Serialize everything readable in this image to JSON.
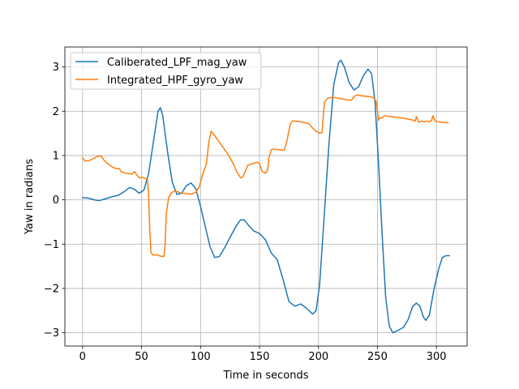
{
  "chart_data": {
    "type": "line",
    "title": "",
    "xlabel": "Time in seconds",
    "ylabel": "Yaw in radians",
    "xlim": [
      -15,
      326
    ],
    "ylim": [
      -3.3,
      3.45
    ],
    "xticks": [
      0,
      50,
      100,
      150,
      200,
      250,
      300
    ],
    "yticks": [
      -3,
      -2,
      -1,
      0,
      1,
      2,
      3
    ],
    "ytick_labels": [
      "−3",
      "−2",
      "−1",
      "0",
      "1",
      "2",
      "3"
    ],
    "grid": true,
    "legend_position": "top-left",
    "series": [
      {
        "name": "Caliberated_LPF_mag_yaw",
        "color": "#1f77b4",
        "points": [
          [
            0,
            0.05
          ],
          [
            5,
            0.04
          ],
          [
            10,
            0.0
          ],
          [
            14,
            -0.02
          ],
          [
            20,
            0.03
          ],
          [
            25,
            0.07
          ],
          [
            30,
            0.1
          ],
          [
            35,
            0.18
          ],
          [
            40,
            0.28
          ],
          [
            44,
            0.24
          ],
          [
            48,
            0.15
          ],
          [
            52,
            0.22
          ],
          [
            56,
            0.6
          ],
          [
            60,
            1.3
          ],
          [
            64,
            2.0
          ],
          [
            66,
            2.08
          ],
          [
            68,
            1.9
          ],
          [
            72,
            1.1
          ],
          [
            76,
            0.4
          ],
          [
            80,
            0.12
          ],
          [
            84,
            0.15
          ],
          [
            88,
            0.32
          ],
          [
            92,
            0.38
          ],
          [
            96,
            0.25
          ],
          [
            100,
            -0.15
          ],
          [
            104,
            -0.6
          ],
          [
            108,
            -1.05
          ],
          [
            112,
            -1.3
          ],
          [
            116,
            -1.28
          ],
          [
            120,
            -1.1
          ],
          [
            125,
            -0.85
          ],
          [
            130,
            -0.6
          ],
          [
            134,
            -0.45
          ],
          [
            137,
            -0.45
          ],
          [
            140,
            -0.55
          ],
          [
            145,
            -0.7
          ],
          [
            150,
            -0.76
          ],
          [
            155,
            -0.9
          ],
          [
            160,
            -1.2
          ],
          [
            165,
            -1.35
          ],
          [
            170,
            -1.8
          ],
          [
            175,
            -2.3
          ],
          [
            180,
            -2.4
          ],
          [
            185,
            -2.35
          ],
          [
            190,
            -2.45
          ],
          [
            195,
            -2.58
          ],
          [
            198,
            -2.5
          ],
          [
            201,
            -1.9
          ],
          [
            205,
            -0.3
          ],
          [
            209,
            1.3
          ],
          [
            213,
            2.6
          ],
          [
            217,
            3.1
          ],
          [
            219,
            3.15
          ],
          [
            222,
            3.0
          ],
          [
            226,
            2.65
          ],
          [
            230,
            2.48
          ],
          [
            234,
            2.55
          ],
          [
            238,
            2.8
          ],
          [
            242,
            2.95
          ],
          [
            245,
            2.85
          ],
          [
            248,
            2.2
          ],
          [
            251,
            0.8
          ],
          [
            254,
            -0.8
          ],
          [
            257,
            -2.2
          ],
          [
            260,
            -2.85
          ],
          [
            263,
            -3.0
          ],
          [
            267,
            -2.95
          ],
          [
            272,
            -2.88
          ],
          [
            276,
            -2.7
          ],
          [
            280,
            -2.4
          ],
          [
            283,
            -2.33
          ],
          [
            286,
            -2.4
          ],
          [
            289,
            -2.65
          ],
          [
            291,
            -2.72
          ],
          [
            294,
            -2.6
          ],
          [
            298,
            -2.0
          ],
          [
            302,
            -1.55
          ],
          [
            305,
            -1.3
          ],
          [
            308,
            -1.26
          ],
          [
            311,
            -1.26
          ]
        ]
      },
      {
        "name": "Integrated_HPF_gyro_yaw",
        "color": "#ff7f0e",
        "points": [
          [
            0,
            0.95
          ],
          [
            2,
            0.88
          ],
          [
            5,
            0.88
          ],
          [
            9,
            0.93
          ],
          [
            13,
            0.99
          ],
          [
            16,
            0.98
          ],
          [
            18,
            0.9
          ],
          [
            22,
            0.8
          ],
          [
            26,
            0.73
          ],
          [
            29,
            0.7
          ],
          [
            31,
            0.71
          ],
          [
            33,
            0.63
          ],
          [
            37,
            0.6
          ],
          [
            42,
            0.58
          ],
          [
            44,
            0.64
          ],
          [
            46,
            0.56
          ],
          [
            48,
            0.5
          ],
          [
            52,
            0.5
          ],
          [
            55,
            0.45
          ],
          [
            56,
            0.1
          ],
          [
            57,
            -0.7
          ],
          [
            58,
            -1.2
          ],
          [
            60,
            -1.25
          ],
          [
            63,
            -1.24
          ],
          [
            66,
            -1.27
          ],
          [
            69,
            -1.28
          ],
          [
            70,
            -1.0
          ],
          [
            71,
            -0.3
          ],
          [
            73,
            0.05
          ],
          [
            75,
            0.15
          ],
          [
            78,
            0.2
          ],
          [
            81,
            0.18
          ],
          [
            84,
            0.15
          ],
          [
            88,
            0.14
          ],
          [
            92,
            0.13
          ],
          [
            96,
            0.17
          ],
          [
            99,
            0.3
          ],
          [
            102,
            0.6
          ],
          [
            105,
            0.8
          ],
          [
            107,
            1.3
          ],
          [
            109,
            1.55
          ],
          [
            112,
            1.45
          ],
          [
            116,
            1.3
          ],
          [
            120,
            1.15
          ],
          [
            124,
            1.0
          ],
          [
            128,
            0.8
          ],
          [
            131,
            0.62
          ],
          [
            134,
            0.5
          ],
          [
            136,
            0.52
          ],
          [
            138,
            0.65
          ],
          [
            140,
            0.78
          ],
          [
            144,
            0.82
          ],
          [
            148,
            0.85
          ],
          [
            150,
            0.82
          ],
          [
            152,
            0.65
          ],
          [
            155,
            0.6
          ],
          [
            157,
            0.68
          ],
          [
            158,
            0.95
          ],
          [
            160,
            1.13
          ],
          [
            162,
            1.15
          ],
          [
            166,
            1.13
          ],
          [
            171,
            1.12
          ],
          [
            173,
            1.3
          ],
          [
            176,
            1.7
          ],
          [
            178,
            1.78
          ],
          [
            182,
            1.77
          ],
          [
            187,
            1.75
          ],
          [
            192,
            1.72
          ],
          [
            195,
            1.62
          ],
          [
            198,
            1.55
          ],
          [
            201,
            1.5
          ],
          [
            203,
            1.52
          ],
          [
            205,
            2.2
          ],
          [
            208,
            2.3
          ],
          [
            212,
            2.31
          ],
          [
            216,
            2.3
          ],
          [
            220,
            2.28
          ],
          [
            224,
            2.26
          ],
          [
            228,
            2.25
          ],
          [
            230,
            2.33
          ],
          [
            233,
            2.37
          ],
          [
            236,
            2.35
          ],
          [
            240,
            2.34
          ],
          [
            244,
            2.33
          ],
          [
            247,
            2.3
          ],
          [
            249,
            2.22
          ],
          [
            250,
            2.0
          ],
          [
            251,
            1.8
          ],
          [
            252,
            1.85
          ],
          [
            254,
            1.85
          ],
          [
            256,
            1.9
          ],
          [
            260,
            1.88
          ],
          [
            265,
            1.87
          ],
          [
            270,
            1.85
          ],
          [
            275,
            1.83
          ],
          [
            280,
            1.8
          ],
          [
            282,
            1.78
          ],
          [
            283,
            1.88
          ],
          [
            285,
            1.75
          ],
          [
            287,
            1.78
          ],
          [
            290,
            1.76
          ],
          [
            292,
            1.78
          ],
          [
            294,
            1.76
          ],
          [
            296,
            1.8
          ],
          [
            297,
            1.9
          ],
          [
            299,
            1.78
          ],
          [
            302,
            1.76
          ],
          [
            305,
            1.75
          ],
          [
            310,
            1.74
          ]
        ]
      }
    ]
  }
}
